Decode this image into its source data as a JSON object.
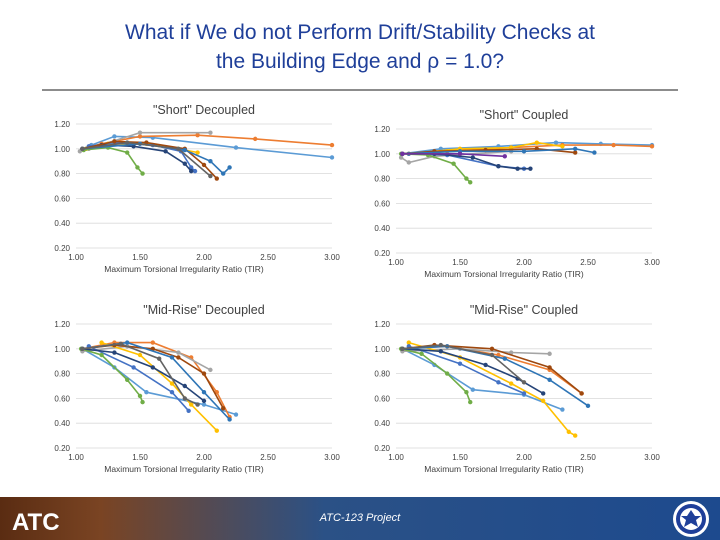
{
  "slide": {
    "title_line1": "What if We do not Perform Drift/Stability Checks at",
    "title_line2": "the Building Edge and ρ = 1.0?",
    "footer_text": "ATC-123 Project",
    "logo_text": "ATC"
  },
  "colors": {
    "title": "#1f3f99",
    "rule": "#8c8c8c",
    "footer": "#1f4a8c"
  },
  "chart_data": [
    {
      "type": "line",
      "title": "\"Short\" Decoupled",
      "xlabel": "Maximum Torsional Irregularity Ratio (TIR)",
      "ylabel": "",
      "xlim": [
        1.0,
        3.0
      ],
      "ylim": [
        0.2,
        1.2
      ],
      "xticks": [
        "1.00",
        "1.50",
        "2.00",
        "2.50",
        "3.00"
      ],
      "yticks": [
        "0.20",
        "0.40",
        "0.60",
        "0.80",
        "1.00",
        "1.20"
      ],
      "grid": true,
      "series": [
        {
          "color": "#5b9bd5",
          "x": [
            1.05,
            1.12,
            1.3,
            1.6,
            2.25,
            3.0
          ],
          "y": [
            1.0,
            1.03,
            1.1,
            1.09,
            1.01,
            0.93
          ]
        },
        {
          "color": "#ed7d31",
          "x": [
            1.05,
            1.2,
            1.5,
            1.95,
            2.4,
            3.0
          ],
          "y": [
            1.0,
            1.04,
            1.1,
            1.11,
            1.08,
            1.03
          ]
        },
        {
          "color": "#a5a5a5",
          "x": [
            1.03,
            1.1,
            1.5,
            2.05
          ],
          "y": [
            0.98,
            1.0,
            1.13,
            1.13
          ]
        },
        {
          "color": "#ffc000",
          "x": [
            1.08,
            1.25,
            1.55,
            1.8,
            1.95
          ],
          "y": [
            1.0,
            1.04,
            1.04,
            1.0,
            0.97
          ]
        },
        {
          "color": "#4472c4",
          "x": [
            1.1,
            1.3,
            1.6,
            1.82,
            1.9,
            1.93
          ],
          "y": [
            1.02,
            1.05,
            1.03,
            0.98,
            0.85,
            0.82
          ]
        },
        {
          "color": "#70ad47",
          "x": [
            1.06,
            1.25,
            1.4,
            1.48,
            1.52
          ],
          "y": [
            0.99,
            1.01,
            0.97,
            0.85,
            0.8
          ]
        },
        {
          "color": "#264478",
          "x": [
            1.05,
            1.2,
            1.45,
            1.7,
            1.85,
            1.9
          ],
          "y": [
            1.0,
            1.03,
            1.02,
            0.98,
            0.88,
            0.82
          ]
        },
        {
          "color": "#9e480e",
          "x": [
            1.05,
            1.3,
            1.55,
            1.85,
            2.0,
            2.1
          ],
          "y": [
            1.0,
            1.06,
            1.05,
            1.0,
            0.87,
            0.76
          ]
        },
        {
          "color": "#2e75b6",
          "x": [
            1.05,
            1.5,
            1.85,
            2.05,
            2.15,
            2.2
          ],
          "y": [
            1.0,
            1.04,
            0.99,
            0.9,
            0.8,
            0.85
          ]
        },
        {
          "color": "#636363",
          "x": [
            1.05,
            1.4,
            1.8,
            2.05
          ],
          "y": [
            1.0,
            1.05,
            1.0,
            0.78
          ]
        }
      ]
    },
    {
      "type": "line",
      "title": "\"Short\" Coupled",
      "xlabel": "Maximum Torsional Irregularity Ratio (TIR)",
      "ylabel": "",
      "xlim": [
        1.0,
        3.0
      ],
      "ylim": [
        0.2,
        1.2
      ],
      "xticks": [
        "1.00",
        "1.50",
        "2.00",
        "2.50",
        "3.00"
      ],
      "yticks": [
        "0.20",
        "0.40",
        "0.60",
        "0.80",
        "1.00",
        "1.20"
      ],
      "grid": true,
      "series": [
        {
          "color": "#5b9bd5",
          "x": [
            1.05,
            1.35,
            1.8,
            2.25,
            2.6,
            3.0
          ],
          "y": [
            1.0,
            1.04,
            1.06,
            1.09,
            1.08,
            1.07
          ]
        },
        {
          "color": "#ed7d31",
          "x": [
            1.05,
            1.4,
            1.9,
            2.3,
            2.7,
            3.0
          ],
          "y": [
            1.0,
            1.02,
            1.05,
            1.07,
            1.07,
            1.06
          ]
        },
        {
          "color": "#a5a5a5",
          "x": [
            1.04,
            1.1,
            1.3,
            1.9
          ],
          "y": [
            0.97,
            0.93,
            0.98,
            1.02
          ]
        },
        {
          "color": "#ffc000",
          "x": [
            1.1,
            1.5,
            1.9,
            2.1,
            2.3
          ],
          "y": [
            1.0,
            1.04,
            1.05,
            1.09,
            1.06
          ]
        },
        {
          "color": "#4472c4",
          "x": [
            1.1,
            1.4,
            1.8,
            2.0
          ],
          "y": [
            1.0,
            0.99,
            0.9,
            0.88
          ]
        },
        {
          "color": "#70ad47",
          "x": [
            1.04,
            1.25,
            1.45,
            1.55,
            1.58
          ],
          "y": [
            1.0,
            0.99,
            0.92,
            0.8,
            0.77
          ]
        },
        {
          "color": "#264478",
          "x": [
            1.05,
            1.3,
            1.6,
            1.8,
            1.95,
            2.05
          ],
          "y": [
            1.0,
            1.0,
            0.97,
            0.9,
            0.88,
            0.88
          ]
        },
        {
          "color": "#9e480e",
          "x": [
            1.05,
            1.3,
            1.7,
            2.1,
            2.4
          ],
          "y": [
            1.0,
            1.02,
            1.03,
            1.04,
            1.01
          ]
        },
        {
          "color": "#2e75b6",
          "x": [
            1.05,
            1.5,
            2.0,
            2.4,
            2.55
          ],
          "y": [
            1.0,
            1.02,
            1.02,
            1.04,
            1.01
          ]
        },
        {
          "color": "#7030a0",
          "x": [
            1.05,
            1.5,
            1.85
          ],
          "y": [
            1.0,
            1.0,
            0.98
          ]
        }
      ]
    },
    {
      "type": "line",
      "title": "\"Mid-Rise\" Decoupled",
      "xlabel": "Maximum Torsional Irregularity Ratio (TIR)",
      "ylabel": "",
      "xlim": [
        1.0,
        3.0
      ],
      "ylim": [
        0.2,
        1.2
      ],
      "xticks": [
        "1.00",
        "1.50",
        "2.00",
        "2.50",
        "3.00"
      ],
      "yticks": [
        "0.20",
        "0.40",
        "0.60",
        "0.80",
        "1.00",
        "1.20"
      ],
      "grid": true,
      "series": [
        {
          "color": "#5b9bd5",
          "x": [
            1.05,
            1.3,
            1.55,
            2.0,
            2.25
          ],
          "y": [
            1.0,
            0.85,
            0.65,
            0.55,
            0.47
          ]
        },
        {
          "color": "#ed7d31",
          "x": [
            1.05,
            1.3,
            1.6,
            1.9,
            2.1,
            2.2
          ],
          "y": [
            1.0,
            1.05,
            1.05,
            0.93,
            0.65,
            0.45
          ]
        },
        {
          "color": "#a5a5a5",
          "x": [
            1.05,
            1.4,
            1.8,
            2.05
          ],
          "y": [
            0.98,
            1.02,
            0.97,
            0.83
          ]
        },
        {
          "color": "#ffc000",
          "x": [
            1.2,
            1.5,
            1.75,
            1.9,
            2.1
          ],
          "y": [
            1.05,
            0.95,
            0.72,
            0.55,
            0.34
          ]
        },
        {
          "color": "#4472c4",
          "x": [
            1.1,
            1.45,
            1.75,
            1.88
          ],
          "y": [
            1.02,
            0.85,
            0.65,
            0.5
          ]
        },
        {
          "color": "#70ad47",
          "x": [
            1.04,
            1.2,
            1.4,
            1.5,
            1.52
          ],
          "y": [
            1.0,
            0.95,
            0.75,
            0.62,
            0.57
          ]
        },
        {
          "color": "#264478",
          "x": [
            1.05,
            1.3,
            1.6,
            1.85,
            2.0
          ],
          "y": [
            1.0,
            0.97,
            0.85,
            0.7,
            0.58
          ]
        },
        {
          "color": "#9e480e",
          "x": [
            1.05,
            1.3,
            1.6,
            1.8,
            2.0,
            2.15
          ],
          "y": [
            1.0,
            1.03,
            1.0,
            0.93,
            0.8,
            0.52
          ]
        },
        {
          "color": "#2e75b6",
          "x": [
            1.05,
            1.4,
            1.75,
            2.0,
            2.2
          ],
          "y": [
            1.0,
            1.05,
            0.93,
            0.65,
            0.43
          ]
        },
        {
          "color": "#636363",
          "x": [
            1.05,
            1.35,
            1.65,
            1.85,
            1.95
          ],
          "y": [
            1.0,
            1.04,
            0.92,
            0.6,
            0.55
          ]
        }
      ]
    },
    {
      "type": "line",
      "title": "\"Mid-Rise\" Coupled",
      "xlabel": "Maximum Torsional Irregularity Ratio (TIR)",
      "ylabel": "",
      "xlim": [
        1.0,
        3.0
      ],
      "ylim": [
        0.2,
        1.2
      ],
      "xticks": [
        "1.00",
        "1.50",
        "2.00",
        "2.50",
        "3.00"
      ],
      "yticks": [
        "0.20",
        "0.40",
        "0.60",
        "0.80",
        "1.00",
        "1.20"
      ],
      "grid": true,
      "series": [
        {
          "color": "#5b9bd5",
          "x": [
            1.05,
            1.3,
            1.6,
            2.0,
            2.3
          ],
          "y": [
            1.0,
            0.87,
            0.67,
            0.63,
            0.51
          ]
        },
        {
          "color": "#ed7d31",
          "x": [
            1.05,
            1.4,
            1.8,
            2.2,
            2.45
          ],
          "y": [
            1.0,
            1.02,
            0.95,
            0.83,
            0.64
          ]
        },
        {
          "color": "#a5a5a5",
          "x": [
            1.05,
            1.5,
            1.9,
            2.2
          ],
          "y": [
            0.98,
            1.0,
            0.97,
            0.96
          ]
        },
        {
          "color": "#ffc000",
          "x": [
            1.1,
            1.5,
            1.9,
            2.15,
            2.35,
            2.4
          ],
          "y": [
            1.05,
            0.93,
            0.72,
            0.58,
            0.33,
            0.3
          ]
        },
        {
          "color": "#4472c4",
          "x": [
            1.1,
            1.5,
            1.8,
            2.0
          ],
          "y": [
            1.02,
            0.88,
            0.73,
            0.64
          ]
        },
        {
          "color": "#70ad47",
          "x": [
            1.04,
            1.2,
            1.4,
            1.55,
            1.58
          ],
          "y": [
            1.0,
            0.96,
            0.8,
            0.65,
            0.57
          ]
        },
        {
          "color": "#264478",
          "x": [
            1.05,
            1.35,
            1.7,
            1.95,
            2.15
          ],
          "y": [
            1.0,
            0.98,
            0.87,
            0.76,
            0.64
          ]
        },
        {
          "color": "#9e480e",
          "x": [
            1.05,
            1.3,
            1.75,
            2.2,
            2.45
          ],
          "y": [
            1.0,
            1.03,
            1.0,
            0.85,
            0.64
          ]
        },
        {
          "color": "#2e75b6",
          "x": [
            1.05,
            1.4,
            1.85,
            2.2,
            2.5
          ],
          "y": [
            1.0,
            1.02,
            0.92,
            0.75,
            0.54
          ]
        },
        {
          "color": "#636363",
          "x": [
            1.05,
            1.35,
            1.75,
            2.0
          ],
          "y": [
            1.0,
            1.03,
            0.95,
            0.73
          ]
        }
      ]
    }
  ]
}
